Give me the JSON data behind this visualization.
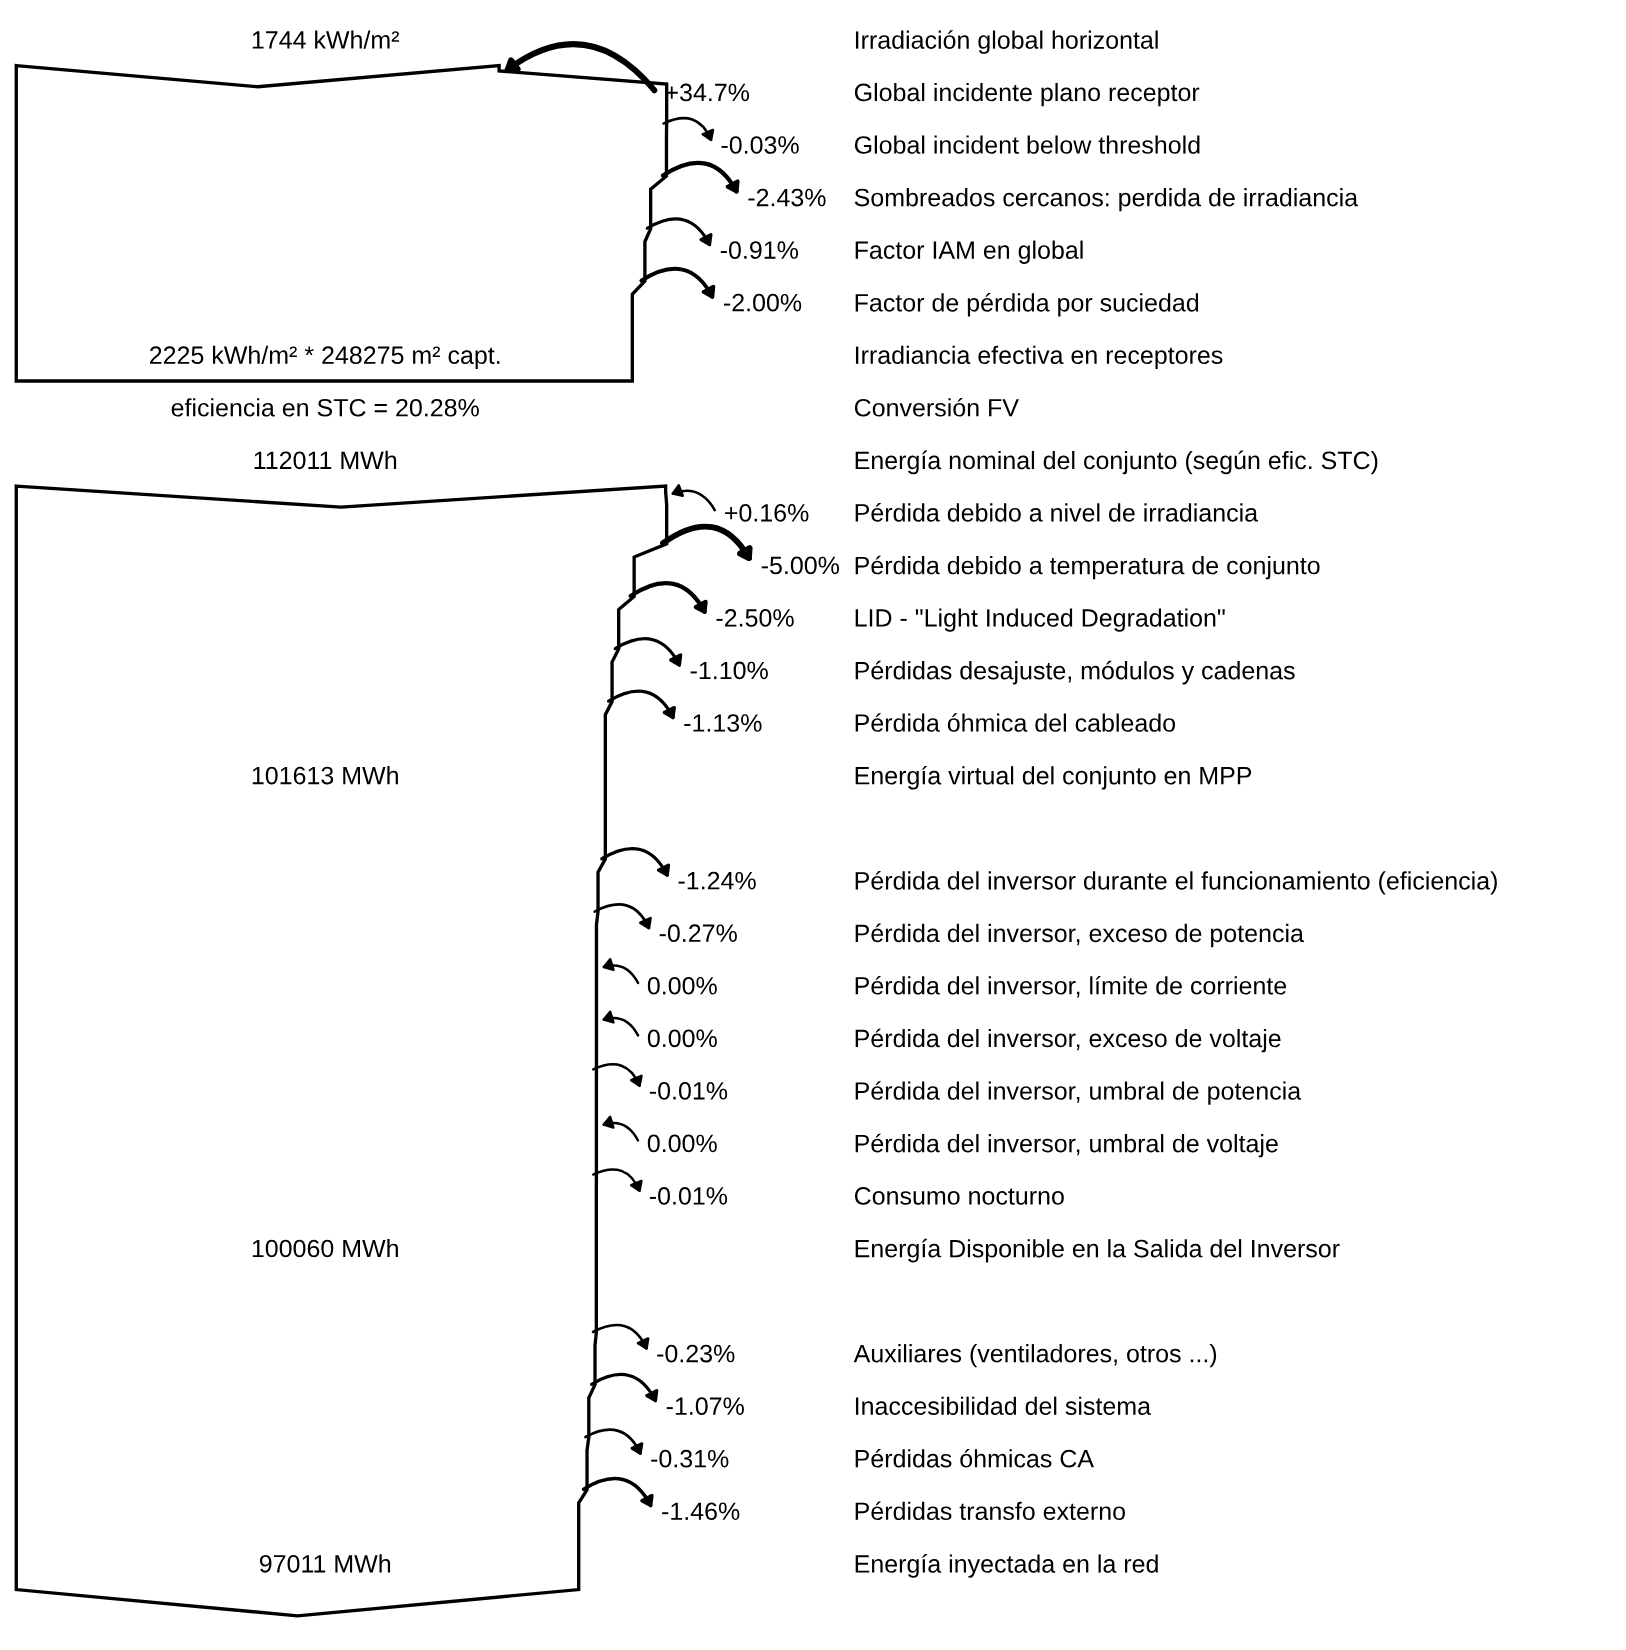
{
  "chart_data": {
    "type": "other",
    "categories": [
      "Irradiación global horizontal",
      "Global incidente plano receptor",
      "Global incident below threshold",
      "Sombreados cercanos: perdida de irradiancia",
      "Factor IAM en global",
      "Factor de pérdida por suciedad",
      "Irradiancia efectiva en receptores",
      "Conversión FV",
      "Energía nominal del conjunto (según efic. STC)",
      "Pérdida debido a nivel de irradiancia",
      "Pérdida debido a temperatura de conjunto",
      "LID - \"Light Induced Degradation\"",
      "Pérdidas desajuste, módulos y cadenas",
      "Pérdida óhmica del cableado",
      "Energía virtual del conjunto en MPP",
      null,
      "Pérdida del inversor durante el funcionamiento (eficiencia)",
      "Pérdida del inversor, exceso de potencia",
      "Pérdida del inversor, límite de corriente",
      "Pérdida del inversor, exceso de voltaje",
      "Pérdida del inversor, umbral de potencia",
      "Pérdida del inversor, umbral de voltaje",
      "Consumo nocturno",
      "Energía Disponible en la Salida del Inversor",
      null,
      "Auxiliares (ventiladores, otros ...)",
      "Inaccesibilidad del sistema",
      "Pérdidas óhmicas CA",
      "Pérdidas transfo externo",
      "Energía inyectada en la red"
    ],
    "values": [
      null,
      34.7,
      -0.03,
      -2.43,
      -0.91,
      -2.0,
      null,
      null,
      null,
      0.16,
      -5.0,
      -2.5,
      -1.1,
      -1.13,
      null,
      null,
      -1.24,
      -0.27,
      0.0,
      0.0,
      -0.01,
      0.0,
      -0.01,
      null,
      null,
      -0.23,
      -1.07,
      -0.31,
      -1.46,
      null
    ],
    "value_labels": [
      null,
      "+34.7%",
      "-0.03%",
      "-2.43%",
      "-0.91%",
      "-2.00%",
      null,
      null,
      null,
      "+0.16%",
      "-5.00%",
      "-2.50%",
      "-1.10%",
      "-1.13%",
      null,
      null,
      "-1.24%",
      "-0.27%",
      "0.00%",
      "0.00%",
      "-0.01%",
      "0.00%",
      "-0.01%",
      null,
      null,
      "-0.23%",
      "-1.07%",
      "-0.31%",
      "-1.46%",
      null
    ],
    "annotations": [
      {
        "text": "1744 kWh/m²",
        "y": "Irradiación global horizontal"
      },
      {
        "text": "2225 kWh/m² * 248275 m² capt.",
        "y": "Irradiancia efectiva en receptores"
      },
      {
        "text": "eficiencia en STC = 20.28%",
        "y": "Conversión FV"
      },
      {
        "text": "112011 MWh",
        "y": "Energía nominal del conjunto (según efic. STC)"
      },
      {
        "text": "101613 MWh",
        "y": "Energía virtual del conjunto en MPP"
      },
      {
        "text": "100060 MWh",
        "y": "Energía Disponible en la Salida del Inversor"
      },
      {
        "text": "97011 MWh",
        "y": "Energía inyectada en la red"
      }
    ]
  }
}
